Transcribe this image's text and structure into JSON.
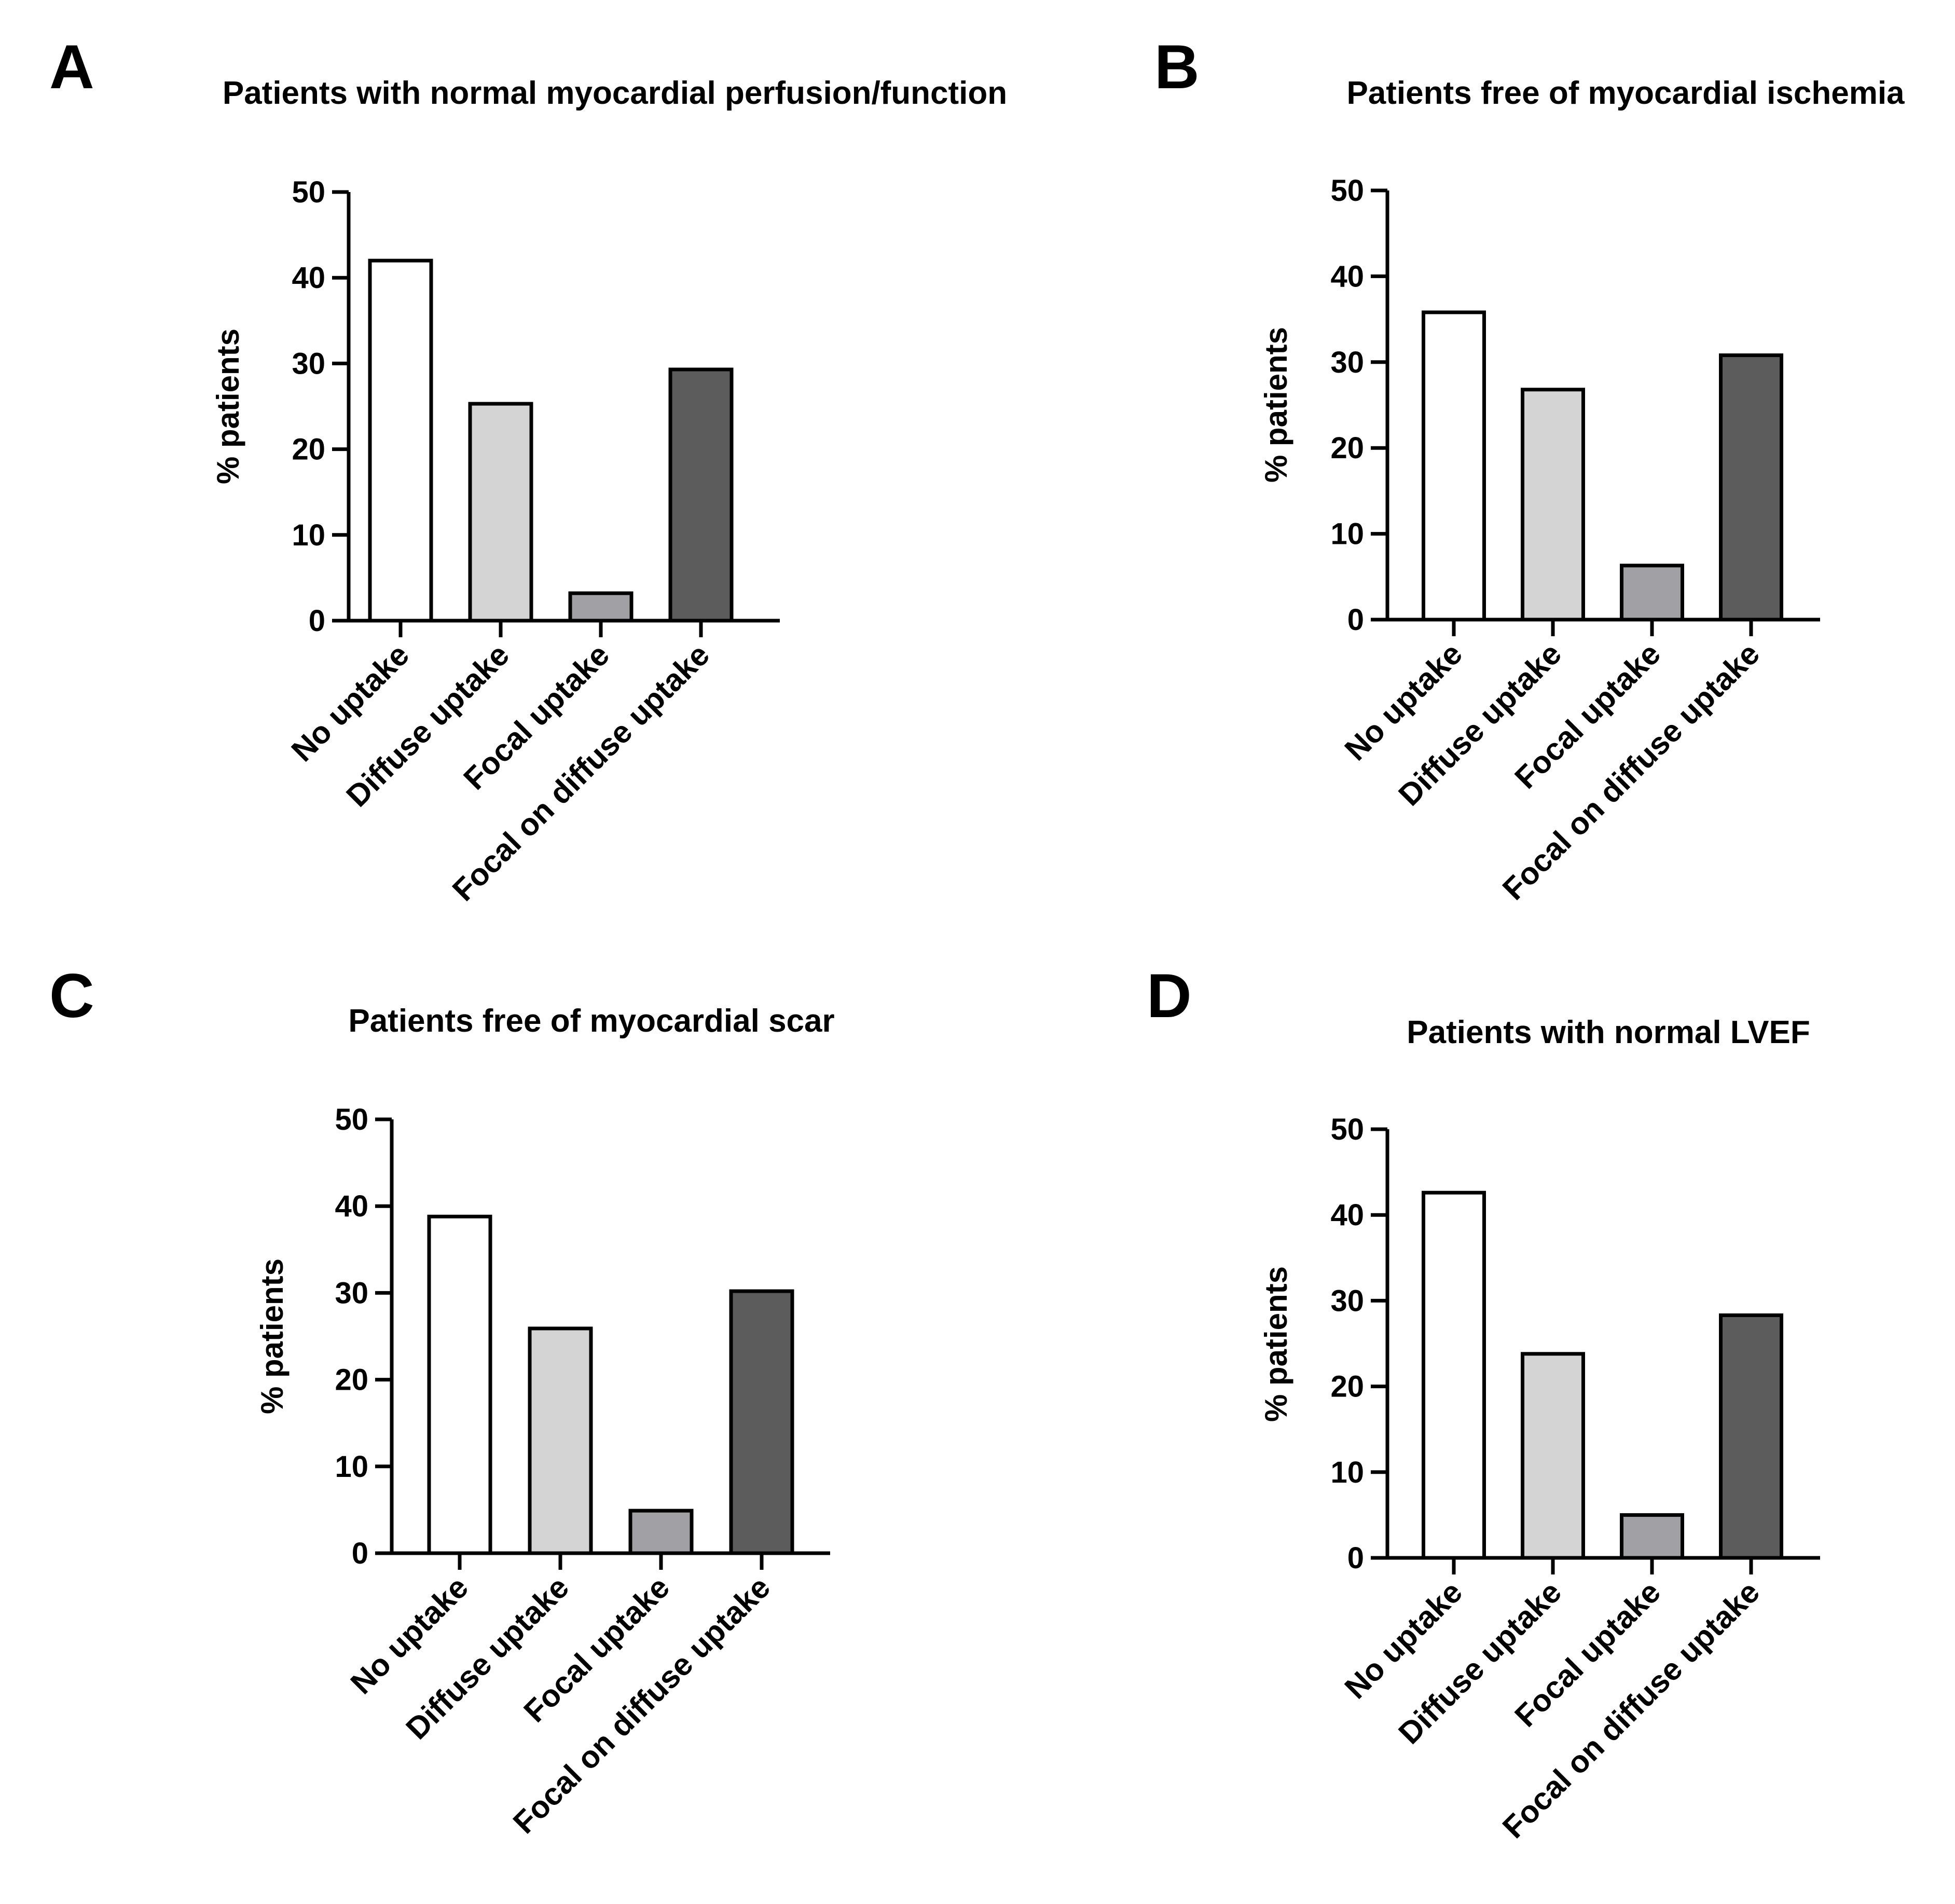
{
  "chart_data": [
    {
      "panel": "A",
      "type": "bar",
      "title": "Patients with normal myocardial perfusion/function",
      "ylabel": "% patients",
      "xlabel": "",
      "ylim": [
        0,
        50
      ],
      "yticks": [
        0,
        10,
        20,
        30,
        40,
        50
      ],
      "categories": [
        "No uptake",
        "Diffuse uptake",
        "Focal uptake",
        "Focal on diffuse uptake"
      ],
      "values": [
        42,
        25.3,
        3.2,
        29.3
      ],
      "colors": [
        "#ffffff",
        "#d4d4d4",
        "#a0a0a5",
        "#5c5c5c"
      ]
    },
    {
      "panel": "B",
      "type": "bar",
      "title": "Patients free of myocardial ischemia",
      "ylabel": "% patients",
      "xlabel": "",
      "ylim": [
        0,
        50
      ],
      "yticks": [
        0,
        10,
        20,
        30,
        40,
        50
      ],
      "categories": [
        "No uptake",
        "Diffuse uptake",
        "Focal uptake",
        "Focal on diffuse uptake"
      ],
      "values": [
        35.8,
        26.8,
        6.3,
        30.8
      ],
      "colors": [
        "#ffffff",
        "#d4d4d4",
        "#a0a0a5",
        "#5c5c5c"
      ]
    },
    {
      "panel": "C",
      "type": "bar",
      "title": "Patients free of myocardial scar",
      "ylabel": "% patients",
      "xlabel": "",
      "ylim": [
        0,
        50
      ],
      "yticks": [
        0,
        10,
        20,
        30,
        40,
        50
      ],
      "categories": [
        "No uptake",
        "Diffuse uptake",
        "Focal uptake",
        "Focal on diffuse uptake"
      ],
      "values": [
        38.8,
        25.9,
        4.9,
        30.2
      ],
      "colors": [
        "#ffffff",
        "#d4d4d4",
        "#a0a0a5",
        "#5c5c5c"
      ]
    },
    {
      "panel": "D",
      "type": "bar",
      "title": "Patients with normal LVEF",
      "ylabel": "% patients",
      "xlabel": "",
      "ylim": [
        0,
        50
      ],
      "yticks": [
        0,
        10,
        20,
        30,
        40,
        50
      ],
      "categories": [
        "No uptake",
        "Diffuse uptake",
        "Focal uptake",
        "Focal on diffuse uptake"
      ],
      "values": [
        42.6,
        23.8,
        5.0,
        28.3
      ],
      "colors": [
        "#ffffff",
        "#d4d4d4",
        "#a0a0a5",
        "#5c5c5c"
      ]
    }
  ]
}
